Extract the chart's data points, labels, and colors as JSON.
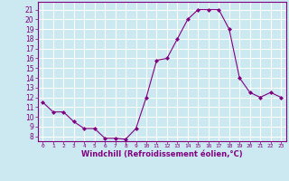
{
  "x": [
    0,
    1,
    2,
    3,
    4,
    5,
    6,
    7,
    8,
    9,
    10,
    11,
    12,
    13,
    14,
    15,
    16,
    17,
    18,
    19,
    20,
    21,
    22,
    23
  ],
  "y": [
    11.5,
    10.5,
    10.5,
    9.5,
    8.8,
    8.8,
    7.8,
    7.8,
    7.7,
    8.8,
    12.0,
    15.8,
    16.0,
    18.0,
    20.0,
    21.0,
    21.0,
    21.0,
    19.0,
    14.0,
    12.5,
    12.0,
    12.5,
    12.0
  ],
  "line_color": "#800080",
  "marker": "D",
  "marker_size": 2.0,
  "bg_color": "#cce8f0",
  "grid_color": "#ffffff",
  "xlabel": "Windchill (Refroidissement éolien,°C)",
  "xlabel_color": "#800080",
  "tick_color": "#800080",
  "ylim": [
    7.5,
    21.8
  ],
  "yticks": [
    8,
    9,
    10,
    11,
    12,
    13,
    14,
    15,
    16,
    17,
    18,
    19,
    20,
    21
  ],
  "xticks": [
    0,
    1,
    2,
    3,
    4,
    5,
    6,
    7,
    8,
    9,
    10,
    11,
    12,
    13,
    14,
    15,
    16,
    17,
    18,
    19,
    20,
    21,
    22,
    23
  ],
  "xlim": [
    -0.5,
    23.5
  ]
}
